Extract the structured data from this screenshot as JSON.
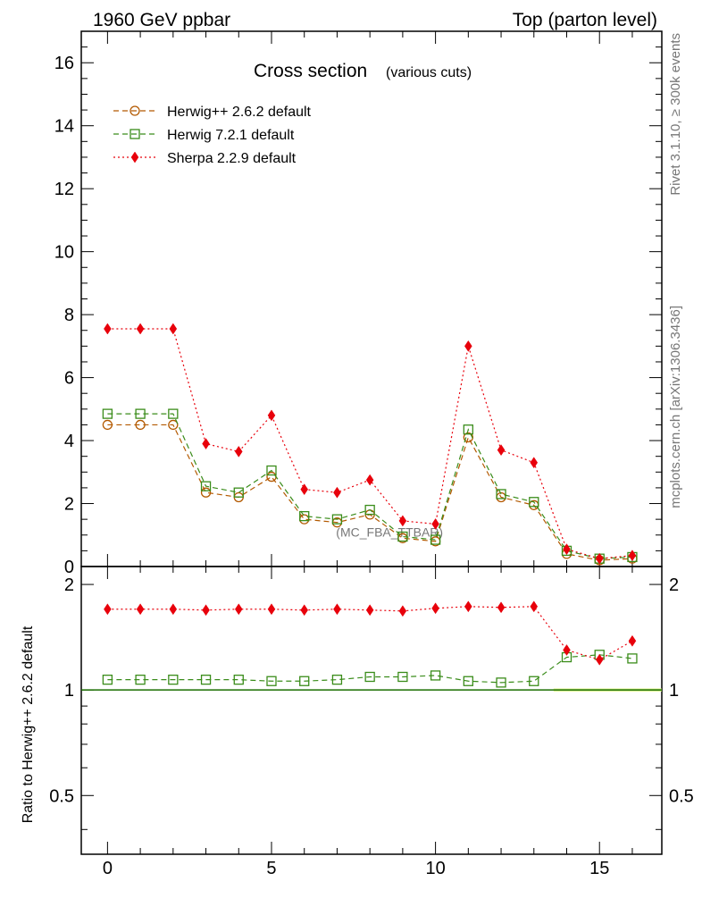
{
  "header": {
    "left_title": "1960 GeV ppbar",
    "right_title": "Top (parton level)"
  },
  "side_labels": {
    "rivet": "Rivet 3.1.10, ≥ 300k events",
    "mcplots": "mcplots.cern.ch [arXiv:1306.3436]"
  },
  "chart_data": [
    {
      "type": "line",
      "title": "Cross section",
      "subtitle": "(various cuts)",
      "watermark": "(MC_FBA_TTBAR)",
      "xlabel": "",
      "ylabel": "",
      "x": [
        0,
        1,
        2,
        3,
        4,
        5,
        6,
        7,
        8,
        9,
        10,
        11,
        12,
        13,
        14,
        15,
        16
      ],
      "xlim": [
        -0.8,
        16.9
      ],
      "ylim": [
        0,
        17
      ],
      "yticks": [
        0,
        2,
        4,
        6,
        8,
        10,
        12,
        14,
        16
      ],
      "legend_position": "top-left",
      "series": [
        {
          "name": "Herwig++ 2.6.2 default",
          "color": "#b35900",
          "marker": "circle",
          "linestyle": "dashed",
          "values": [
            4.5,
            4.5,
            4.5,
            2.35,
            2.2,
            2.85,
            1.5,
            1.4,
            1.65,
            0.9,
            0.8,
            4.1,
            2.2,
            1.95,
            0.4,
            0.2,
            0.25
          ]
        },
        {
          "name": "Herwig 7.2.1 default",
          "color": "#3a8c1a",
          "marker": "square",
          "linestyle": "dashed",
          "values": [
            4.85,
            4.85,
            4.85,
            2.55,
            2.35,
            3.05,
            1.6,
            1.5,
            1.8,
            0.95,
            0.85,
            4.35,
            2.3,
            2.05,
            0.5,
            0.25,
            0.3
          ]
        },
        {
          "name": "Sherpa 2.2.9 default",
          "color": "#e8000b",
          "marker": "diamond",
          "linestyle": "dotted",
          "values": [
            7.55,
            7.55,
            7.55,
            3.9,
            3.65,
            4.8,
            2.45,
            2.35,
            2.75,
            1.45,
            1.35,
            7.0,
            3.7,
            3.3,
            0.55,
            0.25,
            0.35
          ]
        }
      ]
    },
    {
      "type": "line",
      "ylabel": "Ratio to Herwig++ 2.6.2 default",
      "xlabel": "",
      "x": [
        0,
        1,
        2,
        3,
        4,
        5,
        6,
        7,
        8,
        9,
        10,
        11,
        12,
        13,
        14,
        15,
        16
      ],
      "xlim": [
        -0.8,
        16.9
      ],
      "ylim": [
        0.34,
        2.25
      ],
      "yticks": [
        0.5,
        1,
        2
      ],
      "ytick_labels": [
        "0.5",
        "1",
        "2"
      ],
      "xticks": [
        0,
        5,
        10,
        15
      ],
      "xtick_labels": [
        "0",
        "5",
        "10",
        "15"
      ],
      "reference": 1,
      "series": [
        {
          "name": "Herwig 7.2.1 default",
          "color": "#3a8c1a",
          "marker": "square",
          "linestyle": "dashed",
          "values": [
            1.07,
            1.07,
            1.07,
            1.07,
            1.07,
            1.06,
            1.06,
            1.07,
            1.09,
            1.09,
            1.1,
            1.06,
            1.05,
            1.06,
            1.24,
            1.26,
            1.23
          ]
        },
        {
          "name": "Sherpa 2.2.9 default",
          "color": "#e8000b",
          "marker": "diamond",
          "linestyle": "dotted",
          "values": [
            1.7,
            1.7,
            1.7,
            1.69,
            1.7,
            1.7,
            1.69,
            1.7,
            1.69,
            1.68,
            1.71,
            1.73,
            1.72,
            1.73,
            1.3,
            1.22,
            1.38
          ]
        }
      ]
    }
  ]
}
